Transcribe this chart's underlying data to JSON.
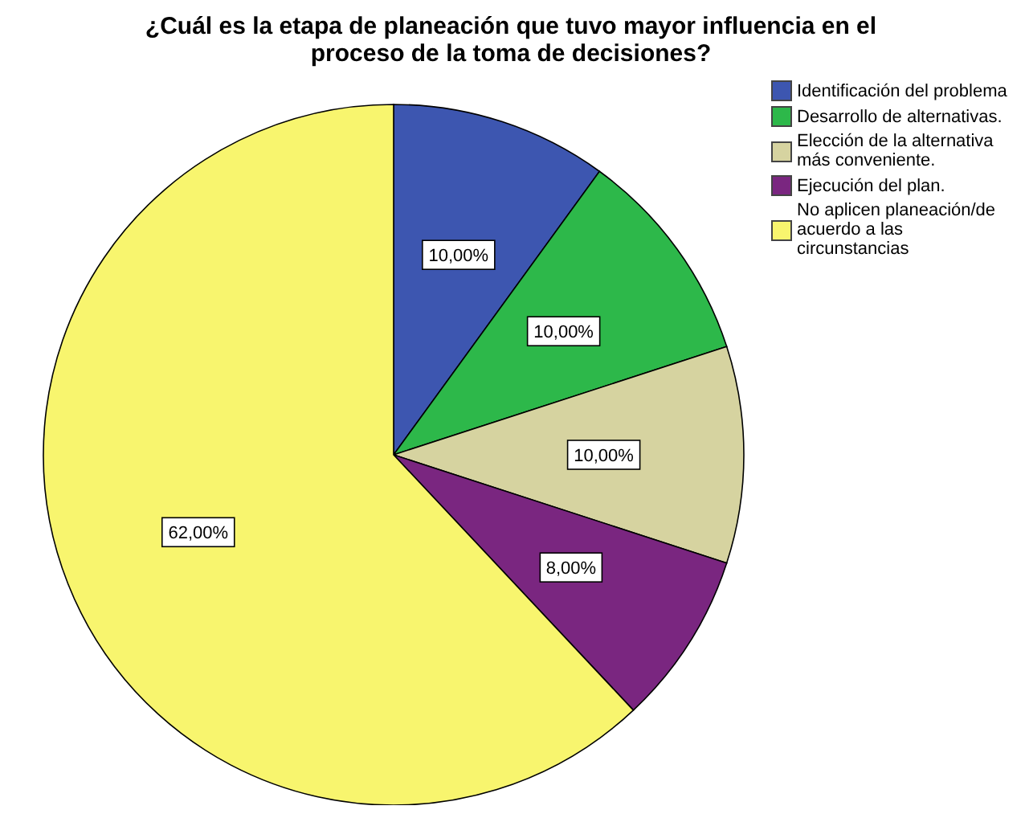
{
  "chart_data": {
    "type": "pie",
    "title": "¿Cuál es la etapa de planeación que tuvo mayor influencia en el proceso de la toma de decisiones?",
    "categories": [
      "Identificación del problema",
      "Desarrollo de alternativas.",
      "Elección de la alternativa más conveniente.",
      "Ejecución del plan.",
      "No aplicen planeación/de acuerdo a las circunstancias"
    ],
    "values": [
      10,
      10,
      10,
      8,
      62
    ],
    "colors": [
      "#3d56b0",
      "#2db84a",
      "#d6d3a0",
      "#7a2680",
      "#f8f56e"
    ],
    "value_labels": [
      "10,00%",
      "10,00%",
      "10,00%",
      "8,00%",
      "62,00%"
    ],
    "legend": "top right"
  }
}
